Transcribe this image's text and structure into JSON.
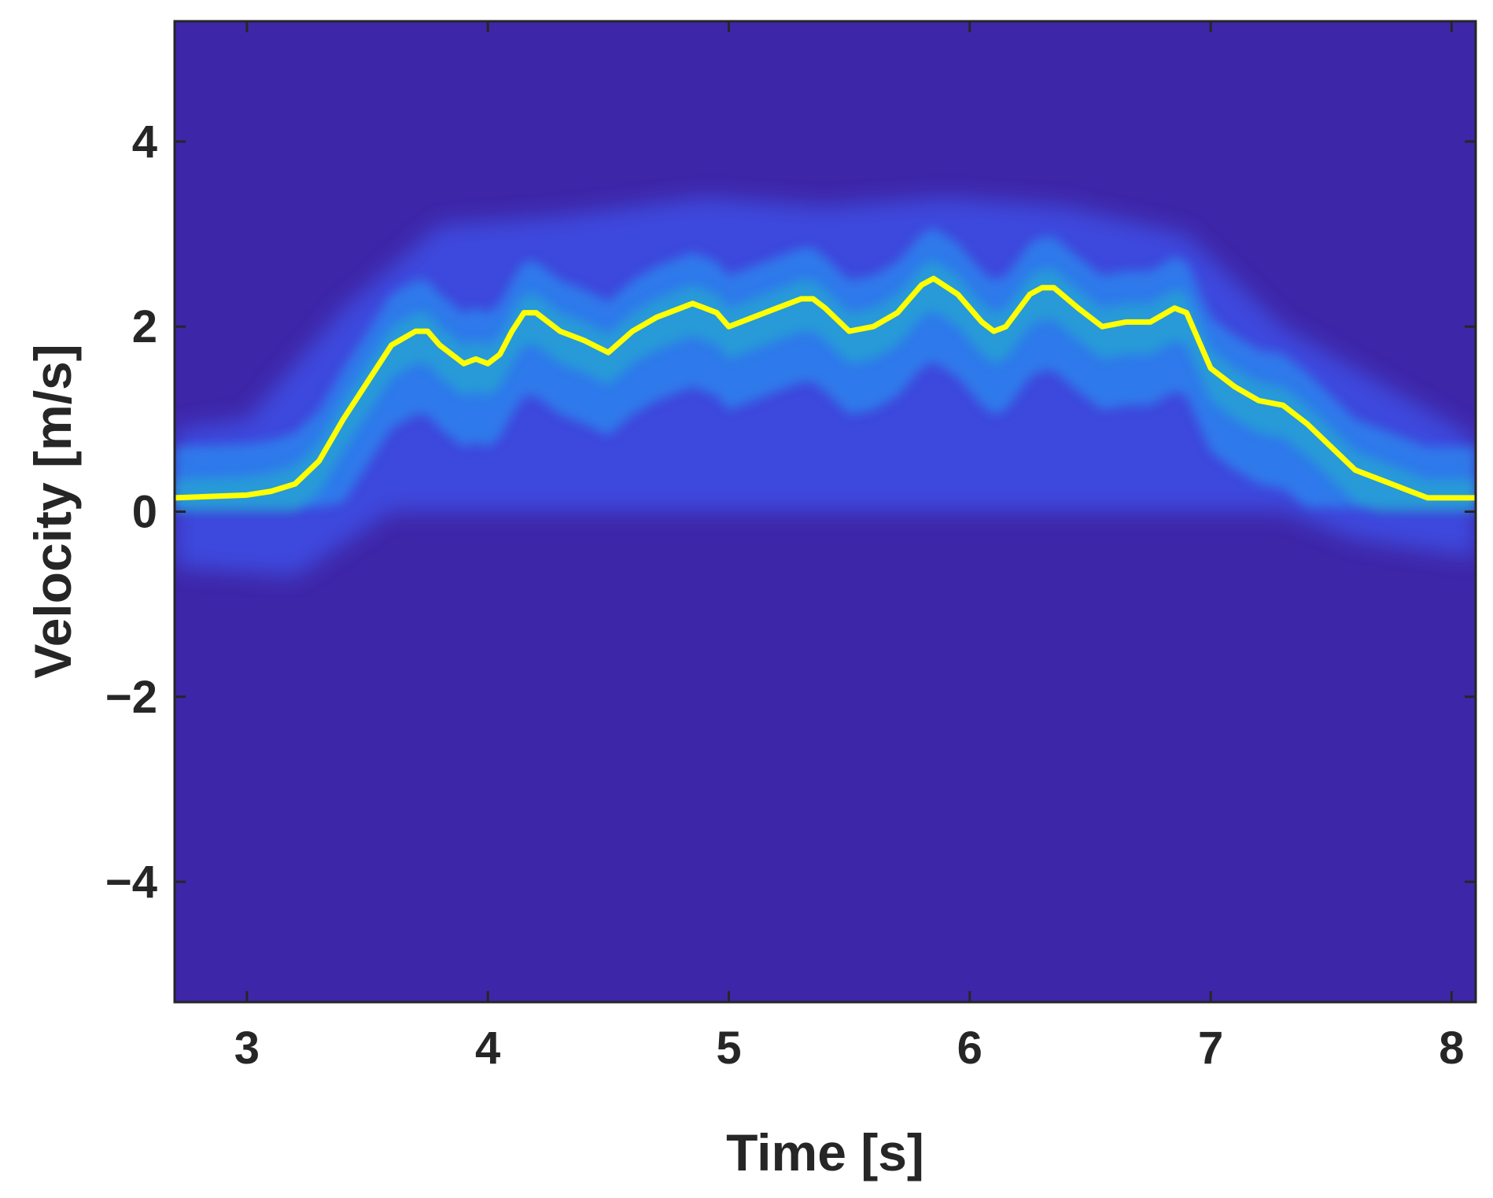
{
  "chart_data": {
    "type": "heatmap",
    "title": "",
    "xlabel": "Time [s]",
    "ylabel": "Velocity [m/s]",
    "xlim": [
      2.7,
      8.1
    ],
    "ylim": [
      -5.3,
      5.3
    ],
    "xticks": [
      3,
      4,
      5,
      6,
      7,
      8
    ],
    "xtick_labels": [
      "3",
      "4",
      "5",
      "6",
      "7",
      "8"
    ],
    "yticks": [
      -4,
      -2,
      0,
      2,
      4
    ],
    "ytick_labels": [
      "−4",
      "−2",
      "0",
      "2",
      "4"
    ],
    "grid": false,
    "colormap": "parula",
    "background_color": "#3e26a8",
    "heatmap_description_values": {
      "lower_bound_velocity": [
        [
          2.7,
          -0.6
        ],
        [
          3.2,
          -0.7
        ],
        [
          3.6,
          0.0
        ],
        [
          7.3,
          0.0
        ],
        [
          7.6,
          -0.3
        ],
        [
          8.1,
          -0.5
        ]
      ],
      "upper_bound_velocity": [
        [
          2.7,
          0.9
        ],
        [
          3.0,
          1.0
        ],
        [
          3.4,
          2.2
        ],
        [
          3.8,
          3.1
        ],
        [
          4.3,
          3.2
        ],
        [
          4.9,
          3.4
        ],
        [
          5.4,
          3.3
        ],
        [
          5.9,
          3.4
        ],
        [
          6.4,
          3.3
        ],
        [
          6.9,
          3.0
        ],
        [
          7.3,
          2.0
        ],
        [
          7.7,
          1.4
        ],
        [
          8.1,
          0.8
        ]
      ]
    },
    "series": [
      {
        "name": "",
        "color": "#ffff00",
        "x": [
          2.7,
          3.0,
          3.1,
          3.2,
          3.3,
          3.4,
          3.5,
          3.6,
          3.7,
          3.75,
          3.8,
          3.9,
          3.95,
          4.0,
          4.05,
          4.1,
          4.15,
          4.2,
          4.3,
          4.4,
          4.5,
          4.6,
          4.7,
          4.8,
          4.85,
          4.95,
          5.0,
          5.1,
          5.2,
          5.3,
          5.35,
          5.4,
          5.5,
          5.6,
          5.7,
          5.8,
          5.85,
          5.95,
          6.05,
          6.1,
          6.15,
          6.25,
          6.3,
          6.35,
          6.45,
          6.55,
          6.65,
          6.75,
          6.85,
          6.9,
          7.0,
          7.1,
          7.2,
          7.3,
          7.4,
          7.5,
          7.6,
          7.7,
          7.8,
          7.9,
          8.1
        ],
        "y": [
          0.15,
          0.18,
          0.22,
          0.3,
          0.55,
          1.0,
          1.4,
          1.8,
          1.95,
          1.95,
          1.8,
          1.6,
          1.65,
          1.6,
          1.7,
          1.95,
          2.15,
          2.15,
          1.95,
          1.85,
          1.72,
          1.95,
          2.1,
          2.2,
          2.25,
          2.15,
          2.0,
          2.1,
          2.2,
          2.3,
          2.3,
          2.2,
          1.95,
          2.0,
          2.15,
          2.45,
          2.52,
          2.35,
          2.05,
          1.95,
          2.0,
          2.35,
          2.42,
          2.42,
          2.2,
          2.0,
          2.05,
          2.05,
          2.2,
          2.15,
          1.55,
          1.35,
          1.2,
          1.15,
          0.95,
          0.7,
          0.45,
          0.35,
          0.25,
          0.15,
          0.15
        ]
      }
    ]
  }
}
